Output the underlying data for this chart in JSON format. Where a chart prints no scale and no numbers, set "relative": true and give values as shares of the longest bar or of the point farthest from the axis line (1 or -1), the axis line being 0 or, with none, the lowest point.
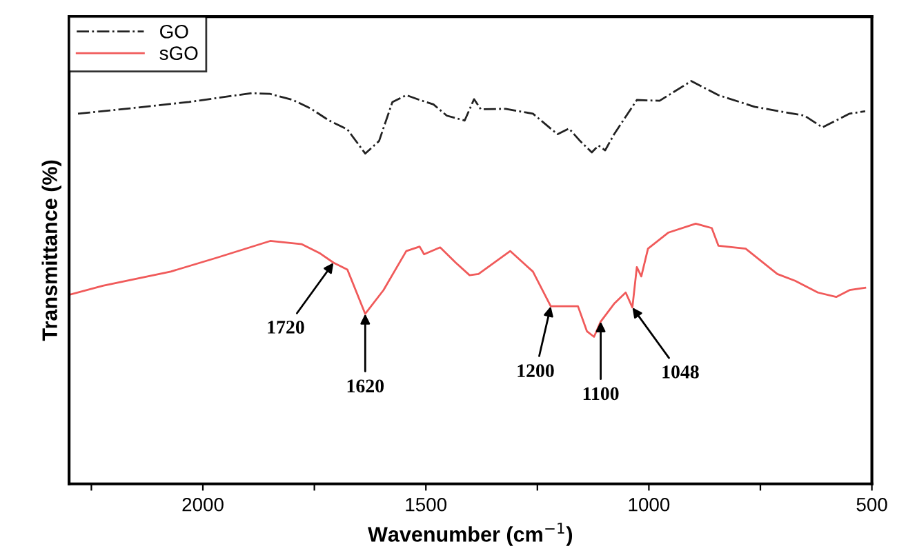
{
  "chart_data": {
    "type": "line",
    "relative": true,
    "xlabel": "Wavenumber (cm$^{−1}$)",
    "ylabel": "Transmittance (%)",
    "xlim": [
      2300,
      500
    ],
    "xticks": [
      {
        "value": 2250,
        "label": null
      },
      2000,
      {
        "value": 1750,
        "label": null
      },
      1500,
      {
        "value": 1250,
        "label": null
      },
      1000,
      {
        "value": 750,
        "label": null
      },
      500
    ],
    "legend": "top left",
    "grid": false,
    "series": [
      {
        "name": "GO",
        "color": "#222222",
        "line_style": "dashdot",
        "x": [
          2280,
          2174,
          2031,
          1890,
          1849,
          1798,
          1757,
          1717,
          1676,
          1636,
          1605,
          1575,
          1544,
          1514,
          1483,
          1453,
          1413,
          1392,
          1377,
          1321,
          1260,
          1205,
          1179,
          1154,
          1128,
          1113,
          1098,
          1078,
          1027,
          976,
          905,
          844,
          763,
          651,
          611,
          550,
          515
        ],
        "values": [
          0.919,
          0.931,
          0.948,
          0.97,
          0.968,
          0.953,
          0.931,
          0.902,
          0.88,
          0.82,
          0.851,
          0.948,
          0.965,
          0.953,
          0.942,
          0.914,
          0.902,
          0.955,
          0.93,
          0.931,
          0.919,
          0.868,
          0.882,
          0.851,
          0.823,
          0.84,
          0.828,
          0.868,
          0.953,
          0.951,
          1.0,
          0.965,
          0.936,
          0.914,
          0.885,
          0.919,
          0.925
        ]
      },
      {
        "name": "sGO",
        "color": "#f05a5a",
        "line_style": "solid",
        "x": [
          2297,
          2224,
          2072,
          1970,
          1849,
          1778,
          1737,
          1707,
          1676,
          1636,
          1595,
          1544,
          1514,
          1504,
          1468,
          1433,
          1402,
          1382,
          1311,
          1260,
          1220,
          1159,
          1139,
          1123,
          1108,
          1078,
          1052,
          1037,
          1027,
          1017,
          1002,
          956,
          895,
          859,
          844,
          783,
          712,
          672,
          621,
          580,
          550,
          515
        ],
        "values": [
          0.47,
          0.492,
          0.527,
          0.561,
          0.603,
          0.595,
          0.572,
          0.549,
          0.532,
          0.422,
          0.481,
          0.578,
          0.589,
          0.57,
          0.587,
          0.549,
          0.518,
          0.521,
          0.578,
          0.527,
          0.441,
          0.441,
          0.379,
          0.365,
          0.403,
          0.447,
          0.475,
          0.438,
          0.538,
          0.515,
          0.584,
          0.624,
          0.646,
          0.635,
          0.591,
          0.584,
          0.521,
          0.504,
          0.475,
          0.464,
          0.481,
          0.487
        ]
      }
    ],
    "annotations": [
      {
        "text": "1720",
        "x": 1707,
        "y": 0.549
      },
      {
        "text": "1620",
        "x": 1636,
        "y": 0.422
      },
      {
        "text": "1200",
        "x": 1220,
        "y": 0.441
      },
      {
        "text": "1100",
        "x": 1108,
        "y": 0.403
      },
      {
        "text": "1048",
        "x": 1037,
        "y": 0.438
      }
    ]
  }
}
